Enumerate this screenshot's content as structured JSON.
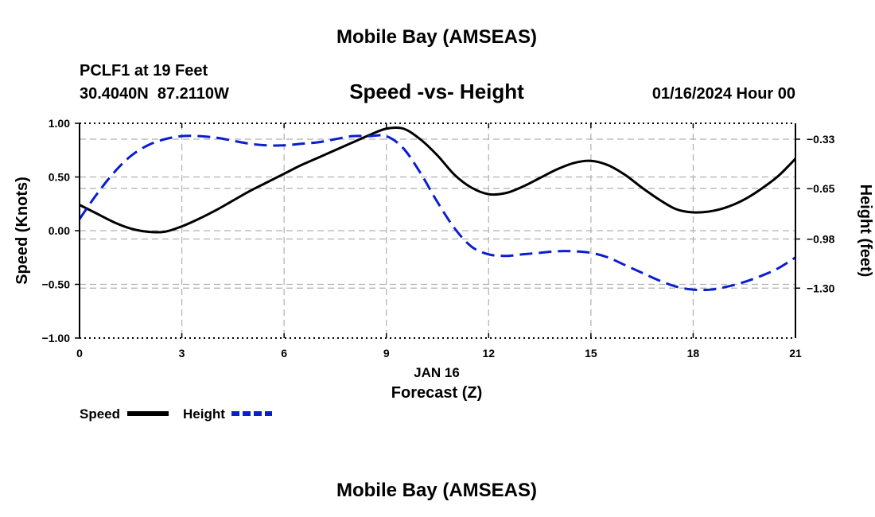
{
  "page": {
    "title_top": "Mobile Bay (AMSEAS)",
    "title_bottom": "Mobile Bay (AMSEAS)",
    "station_line": "PCLF1 at 19 Feet",
    "coords_line": "30.4040N  87.2110W",
    "date_line": "01/16/2024 Hour 00"
  },
  "chart_data": {
    "type": "line",
    "title": "Speed -vs- Height",
    "xlabel": "Forecast (Z)",
    "xlabel_date": "JAN 16",
    "ylabel": "Speed (Knots)",
    "y2label": "Height (feet)",
    "xlim": [
      0,
      21
    ],
    "ylim": [
      -1.0,
      1.0
    ],
    "y2lim": [
      -1.625,
      -0.2264
    ],
    "x_ticks": [
      0,
      3,
      6,
      9,
      12,
      15,
      18,
      21
    ],
    "x_tick_labels": [
      "0",
      "3",
      "6",
      "9",
      "12",
      "15",
      "18",
      "21"
    ],
    "y_ticks": [
      1.0,
      0.5,
      0.0,
      -0.5,
      -1.0
    ],
    "y_tick_labels": [
      "1.00",
      "0.50",
      "0.00",
      "−0.50",
      "−1.00"
    ],
    "y2_ticks": [
      -0.33,
      -0.65,
      -0.98,
      -1.3
    ],
    "y2_tick_labels": [
      "−0.33",
      "−0.65",
      "−0.98",
      "−1.30"
    ],
    "grid": true,
    "series": [
      {
        "name": "Speed",
        "axis": "left",
        "color": "#000000",
        "dash": "solid",
        "x": [
          0,
          0.5,
          1,
          1.5,
          2,
          2.5,
          3,
          3.5,
          4,
          4.5,
          5,
          5.5,
          6,
          6.5,
          7,
          7.5,
          8,
          8.5,
          9,
          9.5,
          10,
          10.5,
          11,
          11.5,
          12,
          12.5,
          13,
          13.5,
          14,
          14.5,
          15,
          15.5,
          16,
          16.5,
          17,
          17.5,
          18,
          18.5,
          19,
          19.5,
          20,
          20.5,
          21
        ],
        "values": [
          0.24,
          0.16,
          0.08,
          0.02,
          -0.01,
          -0.01,
          0.04,
          0.11,
          0.19,
          0.28,
          0.37,
          0.45,
          0.53,
          0.61,
          0.68,
          0.75,
          0.82,
          0.89,
          0.95,
          0.95,
          0.85,
          0.7,
          0.52,
          0.4,
          0.34,
          0.35,
          0.41,
          0.49,
          0.57,
          0.63,
          0.65,
          0.61,
          0.52,
          0.4,
          0.29,
          0.2,
          0.17,
          0.18,
          0.22,
          0.29,
          0.39,
          0.51,
          0.67
        ]
      },
      {
        "name": "Height",
        "axis": "right",
        "color": "#0a1ecf",
        "dash": "dashed",
        "x": [
          0,
          0.5,
          1,
          1.5,
          2,
          2.5,
          3,
          3.5,
          4,
          4.5,
          5,
          5.5,
          6,
          6.5,
          7,
          7.5,
          8,
          8.5,
          9,
          9.5,
          10,
          10.5,
          11,
          11.5,
          12,
          12.5,
          13,
          13.5,
          14,
          14.5,
          15,
          15.5,
          16,
          16.5,
          17,
          17.5,
          18,
          18.5,
          19,
          19.5,
          20,
          20.5,
          21
        ],
        "values": [
          -0.85,
          -0.69,
          -0.55,
          -0.44,
          -0.37,
          -0.33,
          -0.31,
          -0.31,
          -0.32,
          -0.34,
          -0.36,
          -0.37,
          -0.37,
          -0.36,
          -0.35,
          -0.33,
          -0.31,
          -0.31,
          -0.31,
          -0.39,
          -0.55,
          -0.74,
          -0.91,
          -1.03,
          -1.08,
          -1.09,
          -1.08,
          -1.07,
          -1.06,
          -1.06,
          -1.07,
          -1.1,
          -1.15,
          -1.2,
          -1.25,
          -1.29,
          -1.31,
          -1.31,
          -1.29,
          -1.26,
          -1.22,
          -1.17,
          -1.1
        ]
      }
    ],
    "legend": [
      {
        "label": "Speed",
        "color": "#000000",
        "dash": "solid"
      },
      {
        "label": "Height",
        "color": "#0a1ecf",
        "dash": "dashed"
      }
    ],
    "legend_position": "bottom-left"
  }
}
